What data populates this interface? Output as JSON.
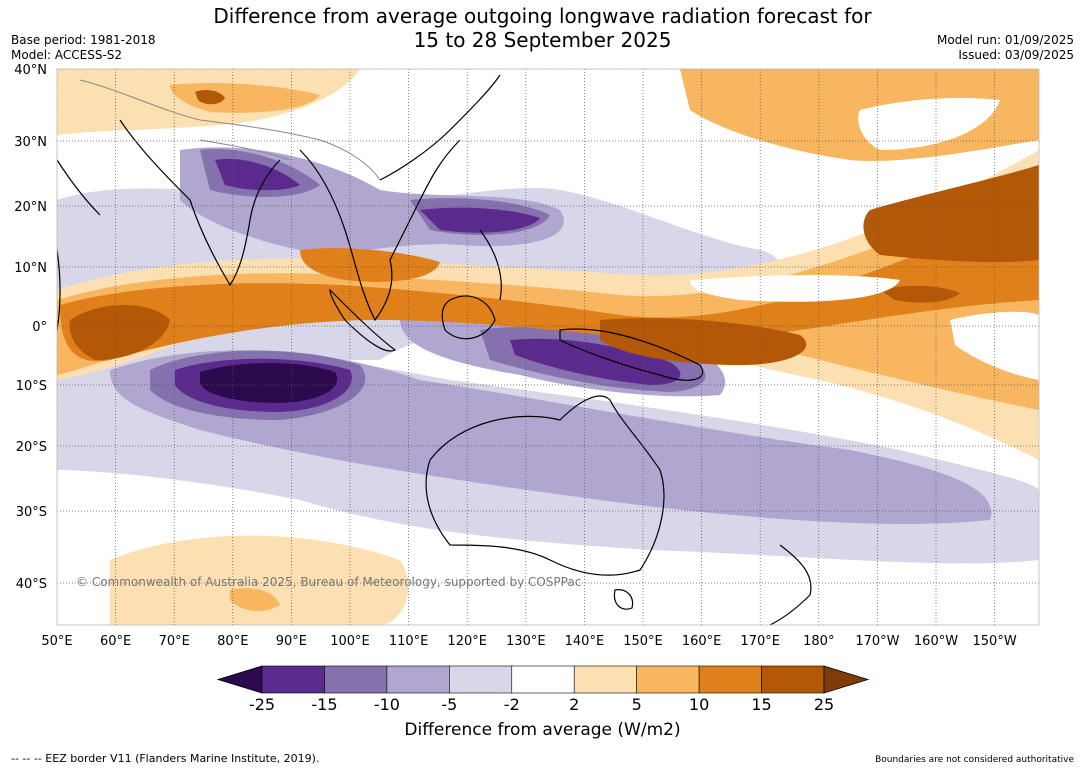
{
  "title_line1": "Difference from average outgoing longwave radiation forecast for",
  "title_line2": "15 to 28 September 2025",
  "base_period": "Base period: 1981-2018",
  "model": "Model: ACCESS-S2",
  "model_run": "Model run: 01/09/2025",
  "issued": "Issued: 03/09/2025",
  "copyright": "© Commonwealth of Australia 2025, Bureau of Meteorology, supported by COSPPac",
  "lat_labels": [
    "40°N",
    "30°N",
    "20°N",
    "10°N",
    "0°",
    "10°S",
    "20°S",
    "30°S",
    "40°S"
  ],
  "lon_labels": [
    "50°E",
    "60°E",
    "70°E",
    "80°E",
    "90°E",
    "100°E",
    "110°E",
    "120°E",
    "130°E",
    "140°E",
    "150°E",
    "160°E",
    "170°E",
    "180°",
    "170°W",
    "160°W",
    "150°W"
  ],
  "colorbar": {
    "ticks": [
      "-25",
      "-15",
      "-10",
      "-5",
      "-2",
      "2",
      "5",
      "10",
      "15",
      "25"
    ],
    "colors": [
      "#2d0a4e",
      "#5a2b8c",
      "#8571ae",
      "#b0a6cf",
      "#d8d6e9",
      "#ffffff",
      "#fde0b2",
      "#f9b660",
      "#e0801a",
      "#b35806",
      "#7f3b08"
    ],
    "label": "Difference from average (W/m2)"
  },
  "footer_left": "--  --  -- EEZ border V11 (Flanders Marine Institute, 2019).",
  "footer_right": "Boundaries are not considered authoritative"
}
